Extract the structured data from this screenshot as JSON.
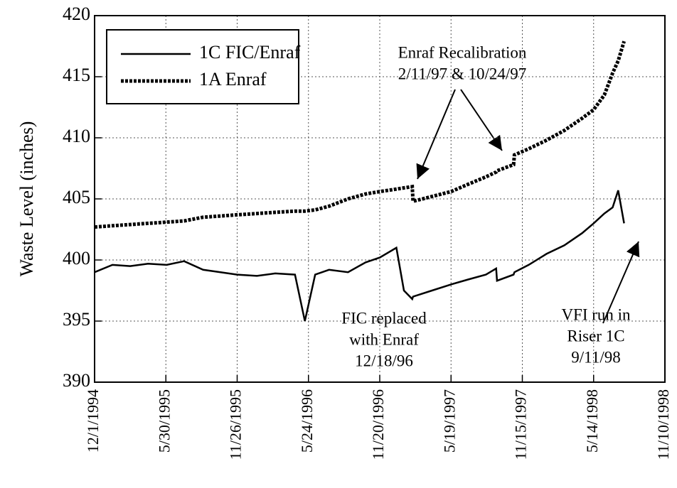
{
  "chart_data": {
    "type": "line",
    "ylabel": "Waste Level (inches)",
    "x": [
      "12/1/1994",
      "1/15/1995",
      "3/1/1995",
      "4/15/1995",
      "6/1/1995",
      "7/15/1995",
      "9/1/1995",
      "10/15/1995",
      "11/26/1995",
      "1/15/1996",
      "3/1/1996",
      "4/20/1996",
      "5/15/1996",
      "6/10/1996",
      "7/15/1996",
      "9/1/1996",
      "10/15/1996",
      "11/20/1996",
      "1/1/1997",
      "1/20/1997",
      "2/10/1997",
      "2/12/1997",
      "4/1/1997",
      "5/19/1997",
      "7/1/1997",
      "8/15/1997",
      "9/10/1997",
      "9/12/1997",
      "10/24/1997",
      "10/26/1997",
      "12/1/1997",
      "1/15/1998",
      "3/1/1998",
      "4/15/1998",
      "5/14/1998",
      "6/10/1998",
      "7/1/1998",
      "7/15/1998",
      "7/30/1998"
    ],
    "series": [
      {
        "name": "1C FIC/Enraf",
        "color": "#000000",
        "dashed": false,
        "values": [
          399,
          399.6,
          399.5,
          399.7,
          399.6,
          399.9,
          399.2,
          399,
          398.8,
          398.7,
          398.9,
          398.8,
          395,
          398.8,
          399.2,
          399,
          399.8,
          400.2,
          401,
          397.5,
          396.8,
          397,
          397.5,
          398,
          398.4,
          398.8,
          399.3,
          398.3,
          398.8,
          399,
          399.6,
          400.5,
          401.2,
          402.2,
          403,
          403.8,
          404.3,
          405.7,
          403
        ]
      },
      {
        "name": "1A Enraf",
        "color": "#000000",
        "dashed": true,
        "values": [
          402.7,
          402.8,
          402.9,
          403,
          403.1,
          403.2,
          403.5,
          403.6,
          403.7,
          403.8,
          403.9,
          404,
          404,
          404.1,
          404.4,
          405,
          405.4,
          405.6,
          405.8,
          405.9,
          406,
          404.8,
          405.2,
          405.6,
          406.2,
          406.8,
          407.2,
          407.3,
          407.8,
          408.6,
          409.1,
          409.8,
          410.6,
          411.6,
          412.3,
          413.5,
          415.3,
          416.3,
          417.9
        ]
      }
    ],
    "xlim": [
      "12/1/1994",
      "11/10/1998"
    ],
    "xticks": [
      "12/1/1994",
      "5/30/1995",
      "11/26/1995",
      "5/24/1996",
      "11/20/1996",
      "5/19/1997",
      "11/15/1997",
      "5/14/1998",
      "11/10/1998"
    ],
    "ylim": [
      390,
      420
    ],
    "yticks": [
      390,
      395,
      400,
      405,
      410,
      415,
      420
    ],
    "grid": true,
    "annotations": [
      {
        "lines": [
          "Enraf Recalibration",
          "2/11/97 & 10/24/97"
        ]
      },
      {
        "lines": [
          "FIC replaced",
          "with Enraf",
          "12/18/96"
        ]
      },
      {
        "lines": [
          "VFI run in",
          "Riser 1C",
          "9/11/98"
        ]
      }
    ]
  }
}
